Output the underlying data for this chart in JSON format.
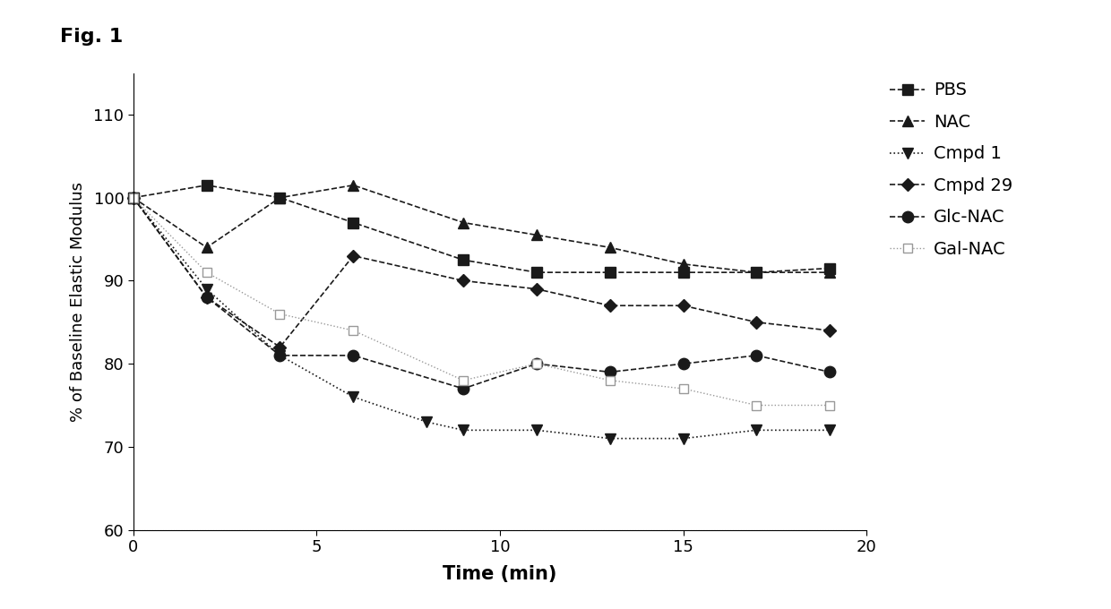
{
  "xlabel": "Time (min)",
  "ylabel": "% of Baseline Elastic Modulus",
  "xlim": [
    0,
    20
  ],
  "ylim": [
    60,
    115
  ],
  "yticks": [
    60,
    70,
    80,
    90,
    100,
    110
  ],
  "xticks": [
    0,
    5,
    10,
    15,
    20
  ],
  "series": [
    {
      "label": "PBS",
      "marker": "s",
      "color": "#1a1a1a",
      "linestyle": "--",
      "linewidth": 1.2,
      "markersize": 8,
      "markerfacecolor": "#1a1a1a",
      "markeredgecolor": "#1a1a1a",
      "x": [
        0,
        2,
        4,
        6,
        9,
        11,
        13,
        15,
        17,
        19
      ],
      "y": [
        100,
        101.5,
        100,
        97,
        92.5,
        91,
        91,
        91,
        91,
        91.5
      ]
    },
    {
      "label": "NAC",
      "marker": "^",
      "color": "#1a1a1a",
      "linestyle": "--",
      "linewidth": 1.2,
      "markersize": 8,
      "markerfacecolor": "#1a1a1a",
      "markeredgecolor": "#1a1a1a",
      "x": [
        0,
        2,
        4,
        6,
        9,
        11,
        13,
        15,
        17,
        19
      ],
      "y": [
        100,
        94,
        100,
        101.5,
        97,
        95.5,
        94,
        92,
        91,
        91
      ]
    },
    {
      "label": "Cmpd 1",
      "marker": "v",
      "color": "#1a1a1a",
      "linestyle": ":",
      "linewidth": 1.2,
      "markersize": 8,
      "markerfacecolor": "#1a1a1a",
      "markeredgecolor": "#1a1a1a",
      "x": [
        0,
        2,
        4,
        6,
        8,
        9,
        11,
        13,
        15,
        17,
        19
      ],
      "y": [
        100,
        89,
        81,
        76,
        73,
        72,
        72,
        71,
        71,
        72,
        72
      ]
    },
    {
      "label": "Cmpd 29",
      "marker": "D",
      "color": "#1a1a1a",
      "linestyle": "--",
      "linewidth": 1.2,
      "markersize": 7,
      "markerfacecolor": "#1a1a1a",
      "markeredgecolor": "#1a1a1a",
      "x": [
        0,
        2,
        4,
        6,
        9,
        11,
        13,
        15,
        17,
        19
      ],
      "y": [
        100,
        88,
        82,
        93,
        90,
        89,
        87,
        87,
        85,
        84
      ]
    },
    {
      "label": "Glc-NAC",
      "marker": "o",
      "color": "#1a1a1a",
      "linestyle": "--",
      "linewidth": 1.2,
      "markersize": 9,
      "markerfacecolor": "#1a1a1a",
      "markeredgecolor": "#1a1a1a",
      "x": [
        0,
        2,
        4,
        6,
        9,
        11,
        13,
        15,
        17,
        19
      ],
      "y": [
        100,
        88,
        81,
        81,
        77,
        80,
        79,
        80,
        81,
        79
      ]
    },
    {
      "label": "Gal-NAC",
      "marker": "s",
      "color": "#999999",
      "linestyle": ":",
      "linewidth": 1.0,
      "markersize": 7,
      "markerfacecolor": "white",
      "markeredgecolor": "#999999",
      "x": [
        0,
        2,
        4,
        6,
        9,
        11,
        13,
        15,
        17,
        19
      ],
      "y": [
        100,
        91,
        86,
        84,
        78,
        80,
        78,
        77,
        75,
        75
      ]
    }
  ],
  "fig_label": "Fig. 1",
  "fig_label_fontsize": 16,
  "xlabel_fontsize": 15,
  "ylabel_fontsize": 13,
  "tick_fontsize": 13,
  "legend_fontsize": 14,
  "background_color": "#ffffff"
}
